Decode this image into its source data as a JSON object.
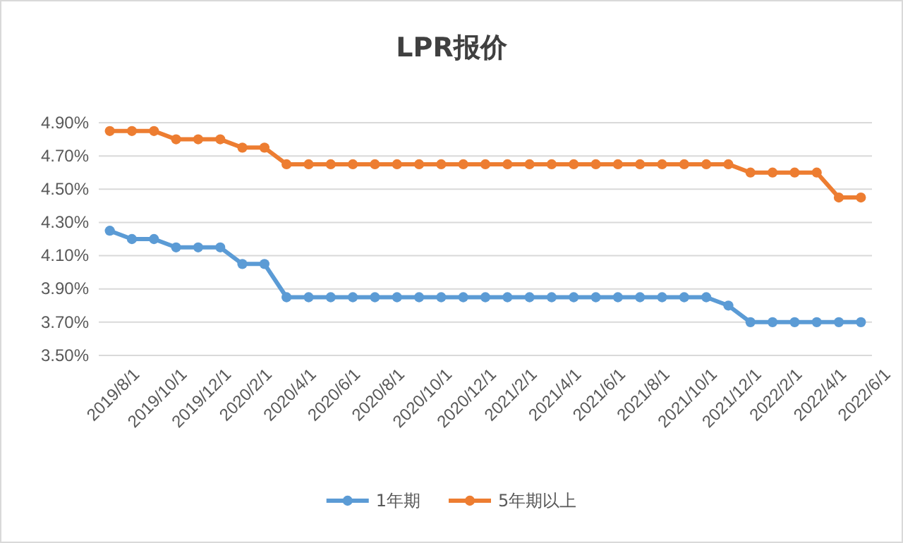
{
  "chart_data": {
    "type": "line",
    "title": "LPR报价",
    "categories": [
      "2019/8/1",
      null,
      "2019/10/1",
      null,
      "2019/12/1",
      null,
      "2020/2/1",
      null,
      "2020/4/1",
      null,
      "2020/6/1",
      null,
      "2020/8/1",
      null,
      "2020/10/1",
      null,
      "2020/12/1",
      null,
      "2021/2/1",
      null,
      "2021/4/1",
      null,
      "2021/6/1",
      null,
      "2021/8/1",
      null,
      "2021/10/1",
      null,
      "2021/12/1",
      null,
      "2022/2/1",
      null,
      "2022/4/1",
      null,
      "2022/6/1"
    ],
    "series": [
      {
        "name": "1年期",
        "color": "#5b9bd5",
        "values": [
          4.25,
          4.2,
          4.2,
          4.15,
          4.15,
          4.15,
          4.05,
          4.05,
          3.85,
          3.85,
          3.85,
          3.85,
          3.85,
          3.85,
          3.85,
          3.85,
          3.85,
          3.85,
          3.85,
          3.85,
          3.85,
          3.85,
          3.85,
          3.85,
          3.85,
          3.85,
          3.85,
          3.85,
          3.8,
          3.7,
          3.7,
          3.7,
          3.7,
          3.7,
          3.7
        ]
      },
      {
        "name": "5年期以上",
        "color": "#ed7d31",
        "values": [
          4.85,
          4.85,
          4.85,
          4.8,
          4.8,
          4.8,
          4.75,
          4.75,
          4.65,
          4.65,
          4.65,
          4.65,
          4.65,
          4.65,
          4.65,
          4.65,
          4.65,
          4.65,
          4.65,
          4.65,
          4.65,
          4.65,
          4.65,
          4.65,
          4.65,
          4.65,
          4.65,
          4.65,
          4.65,
          4.6,
          4.6,
          4.6,
          4.6,
          4.45,
          4.45
        ]
      }
    ],
    "ylim": [
      3.5,
      4.9
    ],
    "yticks": [
      {
        "value": 3.5,
        "label": "3.50%"
      },
      {
        "value": 3.7,
        "label": "3.70%"
      },
      {
        "value": 3.9,
        "label": "3.90%"
      },
      {
        "value": 4.1,
        "label": "4.10%"
      },
      {
        "value": 4.3,
        "label": "4.30%"
      },
      {
        "value": 4.5,
        "label": "4.50%"
      },
      {
        "value": 4.7,
        "label": "4.70%"
      },
      {
        "value": 4.9,
        "label": "4.90%"
      }
    ],
    "grid": "y",
    "legend": "bottom",
    "marker": "circle",
    "line_style": "solid"
  }
}
